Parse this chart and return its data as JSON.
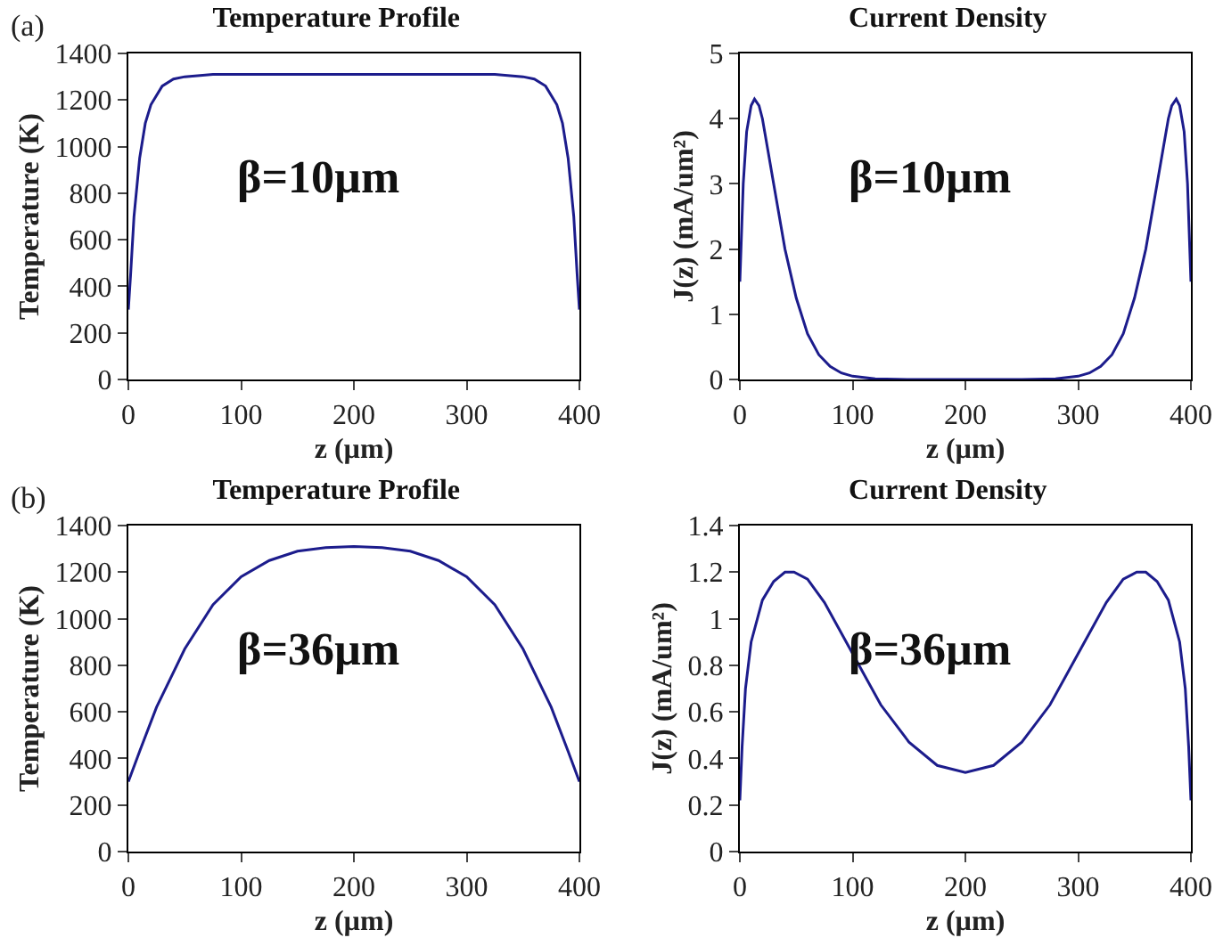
{
  "chart_data": [
    {
      "type": "line",
      "title": "Temperature Profile",
      "xlabel": "z (µm)",
      "ylabel": "Temperature (K)",
      "annotations": [
        "(a)",
        "β=10µm"
      ],
      "x": [
        0,
        2,
        5,
        10,
        15,
        20,
        30,
        40,
        50,
        75,
        100,
        200,
        300,
        325,
        350,
        360,
        370,
        380,
        385,
        390,
        395,
        398,
        400
      ],
      "series": [
        {
          "color": "#1c1c8c",
          "values": [
            300,
            450,
            700,
            950,
            1100,
            1180,
            1260,
            1290,
            1300,
            1310,
            1310,
            1310,
            1310,
            1310,
            1300,
            1290,
            1260,
            1180,
            1100,
            950,
            700,
            450,
            300
          ]
        }
      ],
      "xlim": [
        0,
        400
      ],
      "xticks": [
        0,
        100,
        200,
        300,
        400
      ],
      "ylim": [
        0,
        1400
      ],
      "yticks": [
        0,
        200,
        400,
        600,
        800,
        1000,
        1200,
        1400
      ],
      "grid": false,
      "marker": "none",
      "line_style": "solid"
    },
    {
      "type": "line",
      "title": "Current Density",
      "xlabel": "z (µm)",
      "ylabel": "J(z) (mA/um²)",
      "annotations": [
        "β=10µm"
      ],
      "x": [
        0,
        3,
        6,
        10,
        13,
        17,
        20,
        25,
        30,
        40,
        50,
        60,
        70,
        80,
        90,
        100,
        120,
        150,
        200,
        250,
        280,
        300,
        310,
        320,
        330,
        340,
        350,
        360,
        370,
        375,
        380,
        383,
        387,
        390,
        394,
        397,
        400
      ],
      "series": [
        {
          "color": "#1c1c8c",
          "values": [
            1.5,
            3.0,
            3.8,
            4.2,
            4.3,
            4.2,
            4.0,
            3.5,
            3.0,
            2.0,
            1.25,
            0.7,
            0.38,
            0.2,
            0.1,
            0.05,
            0.01,
            0,
            0,
            0,
            0.01,
            0.05,
            0.1,
            0.2,
            0.38,
            0.7,
            1.25,
            2.0,
            3.0,
            3.5,
            4.0,
            4.2,
            4.3,
            4.2,
            3.8,
            3.0,
            1.5
          ]
        }
      ],
      "xlim": [
        0,
        400
      ],
      "xticks": [
        0,
        100,
        200,
        300,
        400
      ],
      "ylim": [
        0,
        5
      ],
      "yticks": [
        0,
        1,
        2,
        3,
        4,
        5
      ],
      "grid": false,
      "marker": "none",
      "line_style": "solid"
    },
    {
      "type": "line",
      "title": "Temperature Profile",
      "xlabel": "z (µm)",
      "ylabel": "Temperature (K)",
      "annotations": [
        "(b)",
        "β=36µm"
      ],
      "x": [
        0,
        10,
        25,
        50,
        75,
        100,
        125,
        150,
        175,
        200,
        225,
        250,
        275,
        300,
        325,
        350,
        375,
        390,
        400
      ],
      "series": [
        {
          "color": "#1c1c8c",
          "values": [
            300,
            430,
            620,
            870,
            1060,
            1180,
            1250,
            1290,
            1305,
            1310,
            1305,
            1290,
            1250,
            1180,
            1060,
            870,
            620,
            430,
            300
          ]
        }
      ],
      "xlim": [
        0,
        400
      ],
      "xticks": [
        0,
        100,
        200,
        300,
        400
      ],
      "ylim": [
        0,
        1400
      ],
      "yticks": [
        0,
        200,
        400,
        600,
        800,
        1000,
        1200,
        1400
      ],
      "grid": false,
      "marker": "none",
      "line_style": "solid"
    },
    {
      "type": "line",
      "title": "Current Density",
      "xlabel": "z (µm)",
      "ylabel": "J(z) (mA/um²)",
      "annotations": [
        "β=36µm"
      ],
      "x": [
        0,
        2,
        5,
        10,
        20,
        30,
        40,
        48,
        60,
        75,
        100,
        125,
        150,
        175,
        200,
        225,
        250,
        275,
        300,
        325,
        340,
        352,
        360,
        370,
        380,
        390,
        395,
        398,
        400
      ],
      "series": [
        {
          "color": "#1c1c8c",
          "values": [
            0.22,
            0.45,
            0.7,
            0.9,
            1.08,
            1.16,
            1.2,
            1.2,
            1.17,
            1.07,
            0.85,
            0.63,
            0.47,
            0.37,
            0.34,
            0.37,
            0.47,
            0.63,
            0.85,
            1.07,
            1.17,
            1.2,
            1.2,
            1.16,
            1.08,
            0.9,
            0.7,
            0.45,
            0.22
          ]
        }
      ],
      "xlim": [
        0,
        400
      ],
      "xticks": [
        0,
        100,
        200,
        300,
        400
      ],
      "ylim": [
        0,
        1.4
      ],
      "yticks": [
        0,
        0.2,
        0.4,
        0.6,
        0.8,
        1,
        1.2,
        1.4
      ],
      "grid": false,
      "marker": "none",
      "line_style": "solid"
    }
  ]
}
